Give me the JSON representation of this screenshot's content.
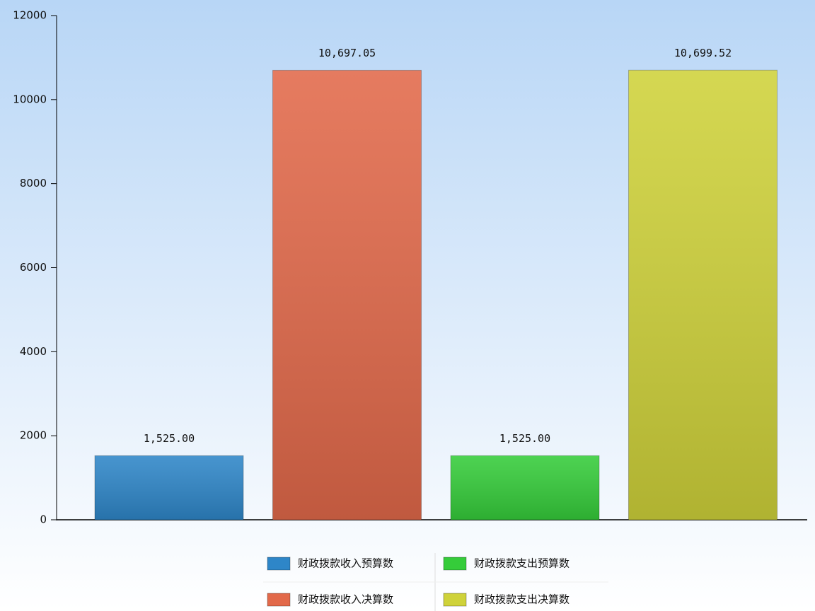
{
  "chart_data": {
    "type": "bar",
    "categories": [
      null
    ],
    "series": [
      {
        "name": "财政拨款收入预算数",
        "color": "#2e86c8",
        "values": [
          1525
        ],
        "value_labels": [
          "1,525.00"
        ]
      },
      {
        "name": "财政拨款收入决算数",
        "color": "#e2694a",
        "values": [
          10697.05
        ],
        "value_labels": [
          "10,697.05"
        ]
      },
      {
        "name": "财政拨款支出预算数",
        "color": "#35cc3a",
        "values": [
          1525
        ],
        "value_labels": [
          "1,525.00"
        ]
      },
      {
        "name": "财政拨款支出决算数",
        "color": "#cfd23a",
        "values": [
          10699.52
        ],
        "value_labels": [
          "10,699.52"
        ]
      }
    ],
    "ylim": [
      0,
      12000
    ],
    "yticks": [
      0,
      2000,
      4000,
      6000,
      8000,
      10000,
      12000
    ],
    "grid": false,
    "legend": "bottom"
  }
}
